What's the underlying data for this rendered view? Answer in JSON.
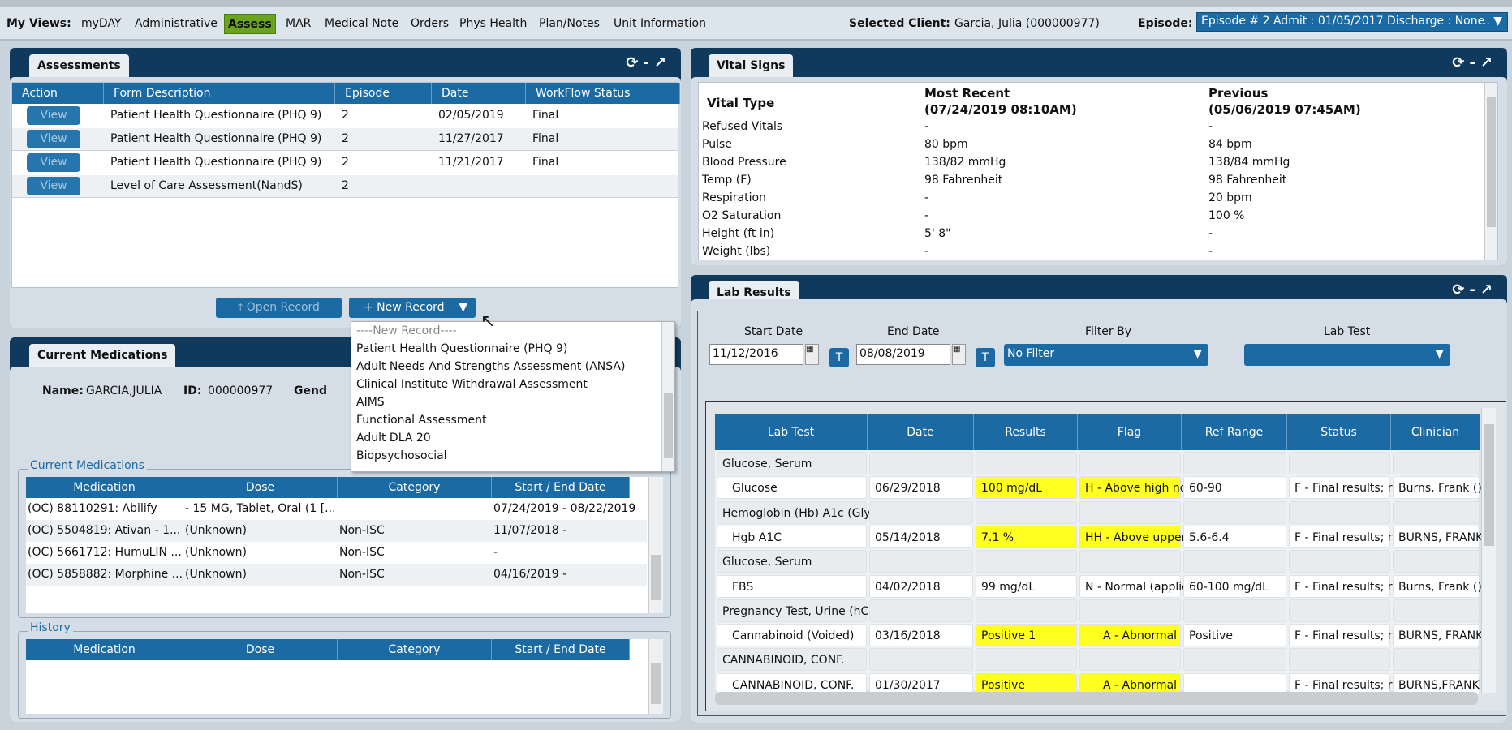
{
  "nav": {
    "label": "My Views:",
    "items": [
      "myDAY",
      "Administrative",
      "Assess",
      "MAR",
      "Medical Note",
      "Orders",
      "Phys Health",
      "Plan/Notes",
      "Unit Information"
    ],
    "active": "Assess",
    "client_label": "Selected Client:",
    "client_value": "Garcia, Julia (000000977)",
    "episode_label": "Episode:",
    "episode_value": "Episode # 2 Admit : 01/05/2017 Discharge : None",
    "episode_more": "... ▼"
  },
  "assessments": {
    "tab": "Assessments",
    "columns": [
      "Action",
      "Form Description",
      "Episode",
      "Date",
      "WorkFlow Status"
    ],
    "rows": [
      {
        "action": "View",
        "form": "Patient Health Questionnaire (PHQ 9)",
        "episode": "2",
        "date": "02/05/2019",
        "status": "Final"
      },
      {
        "action": "View",
        "form": "Patient Health Questionnaire (PHQ 9)",
        "episode": "2",
        "date": "11/27/2017",
        "status": "Final"
      },
      {
        "action": "View",
        "form": "Patient Health Questionnaire (PHQ 9)",
        "episode": "2",
        "date": "11/21/2017",
        "status": "Final"
      },
      {
        "action": "View",
        "form": "Level of Care Assessment(NandS)",
        "episode": "2",
        "date": "",
        "status": ""
      }
    ],
    "open_record": "Open Record",
    "new_record": "+ New Record",
    "dropdown": [
      "----New Record----",
      "Patient Health Questionnaire (PHQ 9)",
      "Adult Needs And Strengths Assessment (ANSA)",
      "Clinical Institute Withdrawal Assessment",
      "AIMS",
      "Functional Assessment",
      "Adult DLA 20",
      "Biopsychosocial"
    ]
  },
  "medications": {
    "tab": "Current Medications",
    "name_label": "Name:",
    "name_value": "GARCIA,JULIA",
    "id_label": "ID:",
    "id_value": "000000977",
    "gender_label": "Gend",
    "current_legend": "Current Medications",
    "columns": [
      "Medication",
      "Dose",
      "Category",
      "Start / End Date"
    ],
    "rows": [
      [
        "(OC) 88110291: Abilify",
        "- 15 MG, Tablet, Oral (1 [...",
        "",
        "07/24/2019 - 08/22/2019"
      ],
      [
        "(OC) 5504819: Ativan - 1...",
        "(Unknown)",
        "Non-ISC",
        "11/07/2018 -"
      ],
      [
        "(OC) 5661712: HumuLIN ...",
        "(Unknown)",
        "Non-ISC",
        "-"
      ],
      [
        "(OC) 5858882: Morphine ...",
        "(Unknown)",
        "Non-ISC",
        "04/16/2019 -"
      ]
    ],
    "history_legend": "History",
    "history_columns": [
      "Medication",
      "Dose",
      "Category",
      "Start / End Date"
    ]
  },
  "vitals": {
    "tab": "Vital Signs",
    "col_type": "Vital Type",
    "col_recent": "Most Recent",
    "col_recent_date": "(07/24/2019 08:10AM)",
    "col_prev": "Previous",
    "col_prev_date": "(05/06/2019 07:45AM)",
    "rows": [
      [
        "Refused Vitals",
        "-",
        "-"
      ],
      [
        "Pulse",
        "80 bpm",
        "84 bpm"
      ],
      [
        "Blood Pressure",
        "138/82 mmHg",
        "138/84 mmHg"
      ],
      [
        "Temp (F)",
        "98 Fahrenheit",
        "98 Fahrenheit"
      ],
      [
        "Respiration",
        "-",
        "20 bpm"
      ],
      [
        "O2 Saturation",
        "-",
        "100 %"
      ],
      [
        "Height (ft in)",
        "5' 8\"",
        "-"
      ],
      [
        "Weight (lbs)",
        "-",
        "-"
      ]
    ]
  },
  "labs": {
    "tab": "Lab Results",
    "start_label": "Start Date",
    "start_value": "11/12/2016",
    "end_label": "End Date",
    "end_value": "08/08/2019",
    "today_btn": "T",
    "filter_label": "Filter By",
    "filter_value": "No Filter",
    "labtest_label": "Lab Test",
    "labtest_value": "",
    "columns": [
      "Lab Test",
      "Date",
      "Results",
      "Flag",
      "Ref Range",
      "Status",
      "Clinician"
    ],
    "rows": [
      {
        "group": true,
        "cells": [
          "Glucose, Serum",
          "",
          "",
          "",
          "",
          "",
          ""
        ]
      },
      {
        "group": false,
        "abnormal": true,
        "cells": [
          "Glucose",
          "06/29/2018",
          "100 mg/dL",
          "H - Above high no",
          "60-90",
          "F - Final results; re",
          "Burns, Frank ()"
        ]
      },
      {
        "group": true,
        "cells": [
          "Hemoglobin (Hb) A1c (Glyc",
          "",
          "",
          "",
          "",
          "",
          ""
        ]
      },
      {
        "group": false,
        "abnormal": true,
        "cells": [
          "Hgb A1C",
          "05/14/2018",
          "7.1 %",
          "HH - Above upper",
          "5.6-6.4",
          "F - Final results; re",
          "BURNS, FRANK"
        ]
      },
      {
        "group": true,
        "cells": [
          "Glucose, Serum",
          "",
          "",
          "",
          "",
          "",
          ""
        ]
      },
      {
        "group": false,
        "abnormal": false,
        "cells": [
          "FBS",
          "04/02/2018",
          "99 mg/dL",
          "N - Normal (applie",
          "60-100 mg/dL",
          "F - Final results; re",
          "Burns, Frank ()"
        ]
      },
      {
        "group": true,
        "cells": [
          "Pregnancy Test, Urine (hC",
          "",
          "",
          "",
          "",
          "",
          ""
        ]
      },
      {
        "group": false,
        "abnormal": true,
        "cells": [
          "Cannabinoid (Voided)",
          "03/16/2018",
          "Positive 1",
          "A - Abnormal",
          "Positive",
          "F - Final results; re",
          "BURNS, FRANK"
        ]
      },
      {
        "group": true,
        "cells": [
          "CANNABINOID, CONF.",
          "",
          "",
          "",
          "",
          "",
          ""
        ]
      },
      {
        "group": false,
        "abnormal": true,
        "cells": [
          "CANNABINOID, CONF.",
          "01/30/2017",
          "Positive",
          "A - Abnormal",
          "",
          "F - Final results; re",
          "BURNS,FRANK"
        ]
      }
    ]
  },
  "colors": {
    "panel_header": "#0f3a5e",
    "table_header": "#1b6aa3",
    "active_view": "#6aa41c",
    "abnormal_highlight": "#ffff22"
  }
}
